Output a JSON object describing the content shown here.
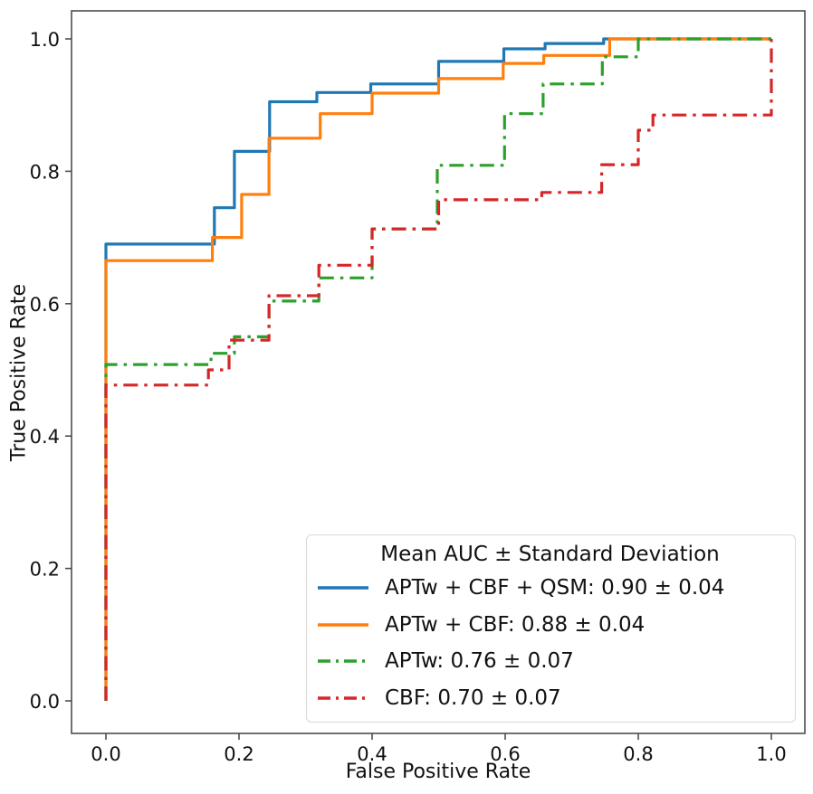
{
  "figure": {
    "background": "#ffffff",
    "spine_color": "#4d4d4d",
    "text_color": "#111111"
  },
  "axes": {
    "xlabel": "False Positive Rate",
    "ylabel": "True Positive Rate",
    "xtick_labels": [
      "0.0",
      "0.2",
      "0.4",
      "0.6",
      "0.8",
      "1.0"
    ],
    "ytick_labels": [
      "0.0",
      "0.2",
      "0.4",
      "0.6",
      "0.8",
      "1.0"
    ]
  },
  "legend": {
    "title": "Mean AUC ± Standard Deviation",
    "position": "lower right"
  },
  "chart_data": {
    "type": "line",
    "subtype": "roc-step-curves",
    "title": "",
    "xlabel": "False Positive Rate",
    "ylabel": "True Positive Rate",
    "xticks": [
      0.0,
      0.2,
      0.4,
      0.6,
      0.8,
      1.0
    ],
    "yticks": [
      0.0,
      0.2,
      0.4,
      0.6,
      0.8,
      1.0
    ],
    "xlim": [
      -0.05,
      1.05
    ],
    "ylim": [
      -0.05,
      1.04
    ],
    "grid": false,
    "legend_position": "lower right",
    "legend_title": "Mean AUC ± Standard Deviation",
    "series": [
      {
        "name": "APTw + CBF + QSM",
        "label": "APTw + CBF + QSM: 0.90 ± 0.04",
        "auc": "0.90 ± 0.04",
        "color": "#1f77b4",
        "style": "solid",
        "points": [
          [
            0,
            0
          ],
          [
            0,
            0.69
          ],
          [
            0.163,
            0.69
          ],
          [
            0.163,
            0.745
          ],
          [
            0.193,
            0.745
          ],
          [
            0.193,
            0.83
          ],
          [
            0.246,
            0.83
          ],
          [
            0.246,
            0.905
          ],
          [
            0.317,
            0.905
          ],
          [
            0.317,
            0.919
          ],
          [
            0.398,
            0.919
          ],
          [
            0.398,
            0.932
          ],
          [
            0.5,
            0.932
          ],
          [
            0.5,
            0.966
          ],
          [
            0.598,
            0.966
          ],
          [
            0.598,
            0.985
          ],
          [
            0.66,
            0.985
          ],
          [
            0.66,
            0.993
          ],
          [
            0.748,
            0.993
          ],
          [
            0.748,
            1.0
          ],
          [
            1.0,
            1.0
          ]
        ]
      },
      {
        "name": "APTw + CBF",
        "label": "APTw + CBF: 0.88 ± 0.04",
        "auc": "0.88 ± 0.04",
        "color": "#ff7f0e",
        "style": "solid",
        "points": [
          [
            0,
            0
          ],
          [
            0,
            0.665
          ],
          [
            0.16,
            0.665
          ],
          [
            0.16,
            0.7
          ],
          [
            0.204,
            0.7
          ],
          [
            0.204,
            0.765
          ],
          [
            0.245,
            0.765
          ],
          [
            0.245,
            0.85
          ],
          [
            0.322,
            0.85
          ],
          [
            0.322,
            0.887
          ],
          [
            0.4,
            0.887
          ],
          [
            0.4,
            0.918
          ],
          [
            0.5,
            0.918
          ],
          [
            0.5,
            0.94
          ],
          [
            0.597,
            0.94
          ],
          [
            0.597,
            0.963
          ],
          [
            0.658,
            0.963
          ],
          [
            0.658,
            0.975
          ],
          [
            0.757,
            0.975
          ],
          [
            0.757,
            1.0
          ],
          [
            1.0,
            1.0
          ]
        ]
      },
      {
        "name": "APTw",
        "label": "APTw: 0.76 ± 0.07",
        "auc": "0.76 ± 0.07",
        "color": "#2ca02c",
        "style": "dashdot",
        "points": [
          [
            0,
            0
          ],
          [
            0,
            0.508
          ],
          [
            0.158,
            0.508
          ],
          [
            0.158,
            0.525
          ],
          [
            0.193,
            0.525
          ],
          [
            0.193,
            0.55
          ],
          [
            0.245,
            0.55
          ],
          [
            0.245,
            0.604
          ],
          [
            0.32,
            0.604
          ],
          [
            0.32,
            0.639
          ],
          [
            0.4,
            0.639
          ],
          [
            0.4,
            0.713
          ],
          [
            0.498,
            0.713
          ],
          [
            0.498,
            0.809
          ],
          [
            0.599,
            0.809
          ],
          [
            0.599,
            0.887
          ],
          [
            0.657,
            0.887
          ],
          [
            0.657,
            0.932
          ],
          [
            0.746,
            0.932
          ],
          [
            0.746,
            0.973
          ],
          [
            0.8,
            0.973
          ],
          [
            0.8,
            1.0
          ],
          [
            1.0,
            1.0
          ]
        ]
      },
      {
        "name": "CBF",
        "label": "CBF: 0.70 ± 0.07",
        "auc": "0.70 ± 0.07",
        "color": "#d62728",
        "style": "dashdot",
        "points": [
          [
            0,
            0
          ],
          [
            0,
            0.477
          ],
          [
            0.154,
            0.477
          ],
          [
            0.154,
            0.5
          ],
          [
            0.185,
            0.5
          ],
          [
            0.185,
            0.545
          ],
          [
            0.245,
            0.545
          ],
          [
            0.245,
            0.612
          ],
          [
            0.32,
            0.612
          ],
          [
            0.32,
            0.658
          ],
          [
            0.4,
            0.658
          ],
          [
            0.4,
            0.713
          ],
          [
            0.5,
            0.713
          ],
          [
            0.5,
            0.757
          ],
          [
            0.655,
            0.757
          ],
          [
            0.655,
            0.768
          ],
          [
            0.745,
            0.768
          ],
          [
            0.745,
            0.81
          ],
          [
            0.8,
            0.81
          ],
          [
            0.8,
            0.862
          ],
          [
            0.822,
            0.862
          ],
          [
            0.822,
            0.885
          ],
          [
            1.0,
            0.885
          ],
          [
            1.0,
            1.0
          ]
        ]
      }
    ]
  }
}
